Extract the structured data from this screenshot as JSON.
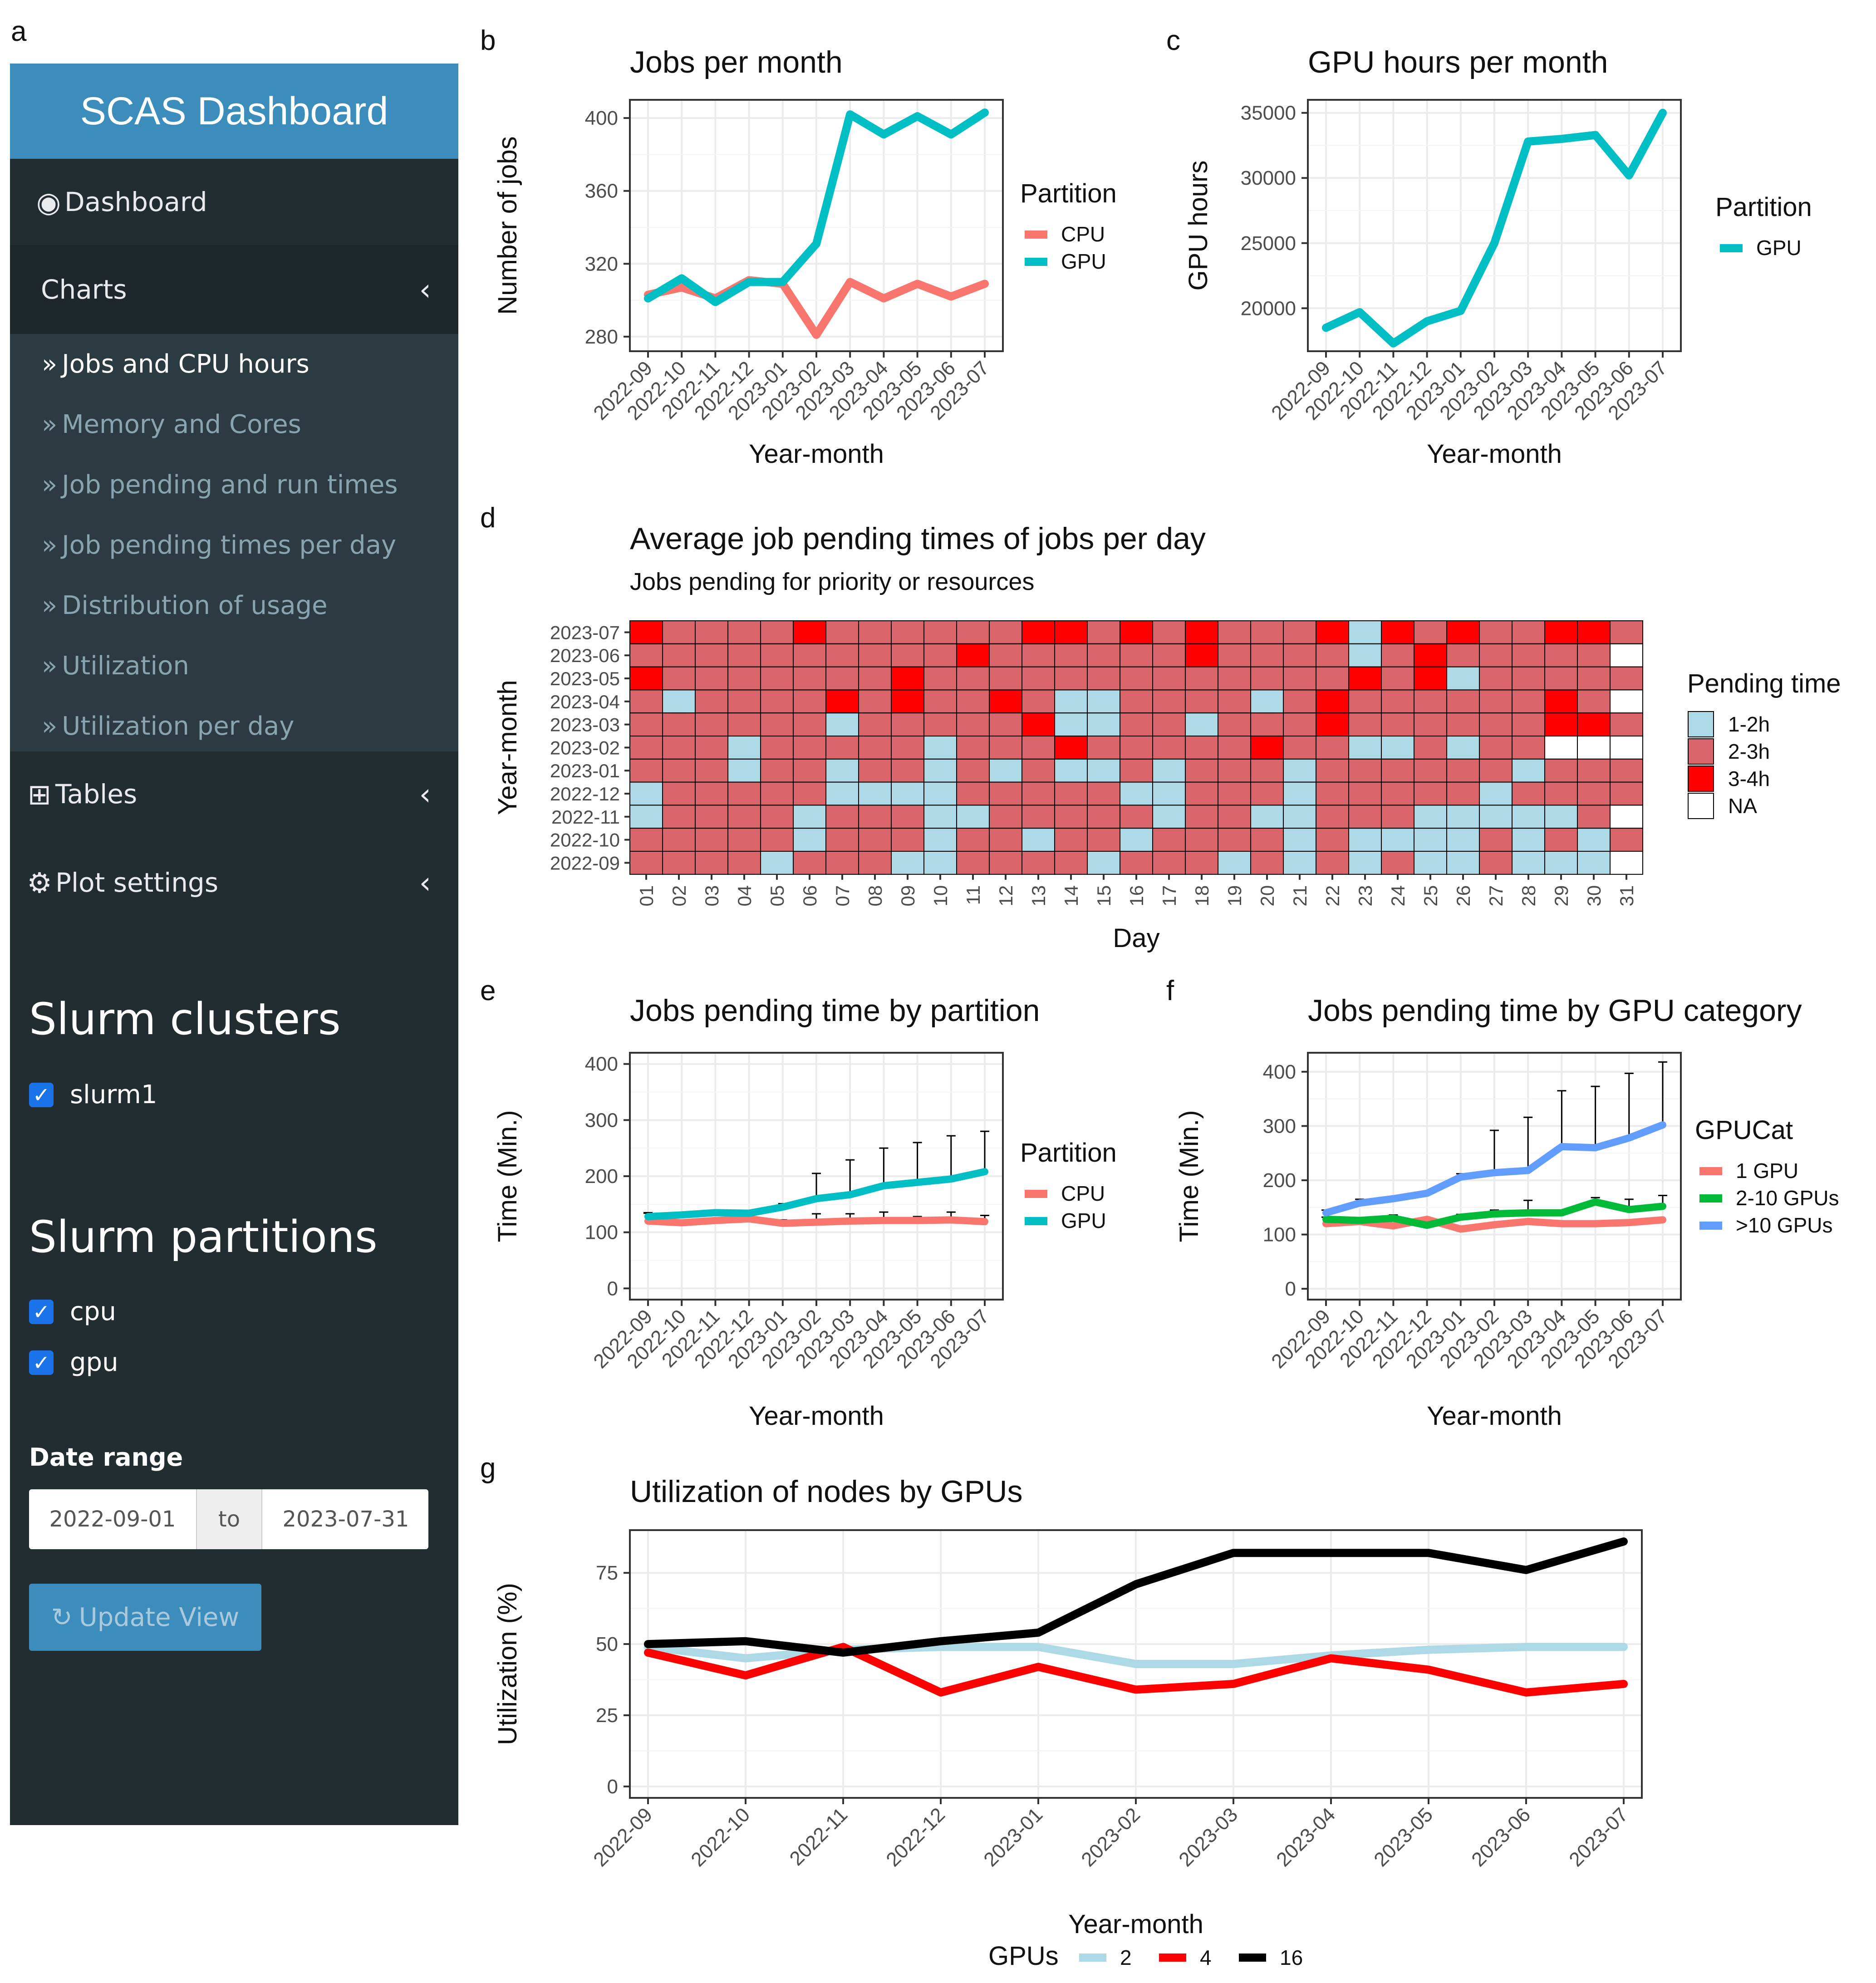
{
  "panel_letters": [
    "a",
    "b",
    "c",
    "d",
    "e",
    "f",
    "g"
  ],
  "sidebar": {
    "title": "SCAS Dashboard",
    "dashboard": {
      "label": "Dashboard",
      "icon": "dashboard-icon"
    },
    "charts": {
      "label": "Charts",
      "icon": "chevron-left-icon"
    },
    "chart_items": [
      {
        "label": "Jobs and CPU hours",
        "active": true
      },
      {
        "label": "Memory and Cores",
        "active": false
      },
      {
        "label": "Job pending and run times",
        "active": false
      },
      {
        "label": "Job pending times per day",
        "active": false
      },
      {
        "label": "Distribution of usage",
        "active": false
      },
      {
        "label": "Utilization",
        "active": false
      },
      {
        "label": "Utilization per day",
        "active": false
      }
    ],
    "tables": {
      "label": "Tables",
      "icon": "table-icon"
    },
    "plot_settings": {
      "label": "Plot settings",
      "icon": "gears-icon"
    },
    "clusters_title": "Slurm clusters",
    "clusters": [
      {
        "label": "slurm1",
        "checked": true
      }
    ],
    "partitions_title": "Slurm partitions",
    "partitions": [
      {
        "label": "cpu",
        "checked": true
      },
      {
        "label": "gpu",
        "checked": true
      }
    ],
    "date_range_label": "Date range",
    "date_from": "2022-09-01",
    "date_sep": "to",
    "date_to": "2023-07-31",
    "update_button": "Update View",
    "colors": {
      "header": "#3c8dbc",
      "body": "#222d32",
      "active": "#1e282c",
      "submenu": "#2c3b41"
    }
  },
  "chart_data": [
    {
      "id": "b",
      "type": "line",
      "title": "Jobs per month",
      "xlabel": "Year-month",
      "ylabel": "Number of jobs",
      "categories": [
        "2022-09",
        "2022-10",
        "2022-11",
        "2022-12",
        "2023-01",
        "2023-02",
        "2023-03",
        "2023-04",
        "2023-05",
        "2023-06",
        "2023-07"
      ],
      "ylim": [
        272,
        410
      ],
      "yticks": [
        280,
        320,
        360,
        400
      ],
      "legend_title": "Partition",
      "legend_position": "right",
      "series": [
        {
          "name": "CPU",
          "color": "#f8766d",
          "values": [
            303,
            307,
            301,
            311,
            309,
            281,
            310,
            301,
            309,
            302,
            309
          ]
        },
        {
          "name": "GPU",
          "color": "#00bfc4",
          "values": [
            301,
            312,
            299,
            310,
            310,
            331,
            402,
            391,
            401,
            391,
            403
          ]
        }
      ]
    },
    {
      "id": "c",
      "type": "line",
      "title": "GPU hours per month",
      "xlabel": "Year-month",
      "ylabel": "GPU hours",
      "categories": [
        "2022-09",
        "2022-10",
        "2022-11",
        "2022-12",
        "2023-01",
        "2023-02",
        "2023-03",
        "2023-04",
        "2023-05",
        "2023-06",
        "2023-07"
      ],
      "ylim": [
        16700,
        36000
      ],
      "yticks": [
        20000,
        25000,
        30000,
        35000
      ],
      "legend_title": "Partition",
      "legend_position": "right",
      "series": [
        {
          "name": "GPU",
          "color": "#00bfc4",
          "values": [
            18500,
            19700,
            17300,
            19000,
            19800,
            25000,
            32800,
            33000,
            33300,
            30200,
            35000
          ]
        }
      ]
    },
    {
      "id": "d",
      "type": "heatmap",
      "title": "Average job pending times of jobs per day",
      "subtitle": "Jobs pending for priority or resources",
      "xlabel": "Day",
      "ylabel": "Year-month",
      "x": [
        "01",
        "02",
        "03",
        "04",
        "05",
        "06",
        "07",
        "08",
        "09",
        "10",
        "11",
        "12",
        "13",
        "14",
        "15",
        "16",
        "17",
        "18",
        "19",
        "20",
        "21",
        "22",
        "23",
        "24",
        "25",
        "26",
        "27",
        "28",
        "29",
        "30",
        "31"
      ],
      "y": [
        "2023-07",
        "2023-06",
        "2023-05",
        "2023-04",
        "2023-03",
        "2023-02",
        "2023-01",
        "2022-12",
        "2022-11",
        "2022-10",
        "2022-09"
      ],
      "legend_title": "Pending time",
      "levels": [
        "1-2h",
        "2-3h",
        "3-4h",
        "NA"
      ],
      "level_colors": {
        "1-2h": "#add8e6",
        "2-3h": "#d9646a",
        "3-4h": "#ff0000",
        "NA": "#ffffff"
      },
      "rows": [
        [
          "3-4h",
          "2-3h",
          "2-3h",
          "2-3h",
          "2-3h",
          "3-4h",
          "2-3h",
          "2-3h",
          "2-3h",
          "2-3h",
          "2-3h",
          "2-3h",
          "3-4h",
          "3-4h",
          "2-3h",
          "3-4h",
          "2-3h",
          "3-4h",
          "2-3h",
          "2-3h",
          "2-3h",
          "3-4h",
          "1-2h",
          "3-4h",
          "2-3h",
          "3-4h",
          "2-3h",
          "2-3h",
          "3-4h",
          "3-4h",
          "2-3h"
        ],
        [
          "2-3h",
          "2-3h",
          "2-3h",
          "2-3h",
          "2-3h",
          "2-3h",
          "2-3h",
          "2-3h",
          "2-3h",
          "2-3h",
          "3-4h",
          "2-3h",
          "2-3h",
          "2-3h",
          "2-3h",
          "2-3h",
          "2-3h",
          "3-4h",
          "2-3h",
          "2-3h",
          "2-3h",
          "2-3h",
          "1-2h",
          "2-3h",
          "3-4h",
          "2-3h",
          "2-3h",
          "2-3h",
          "2-3h",
          "2-3h",
          "NA"
        ],
        [
          "3-4h",
          "2-3h",
          "2-3h",
          "2-3h",
          "2-3h",
          "2-3h",
          "2-3h",
          "2-3h",
          "3-4h",
          "2-3h",
          "2-3h",
          "2-3h",
          "2-3h",
          "2-3h",
          "2-3h",
          "2-3h",
          "2-3h",
          "2-3h",
          "2-3h",
          "2-3h",
          "2-3h",
          "2-3h",
          "3-4h",
          "2-3h",
          "3-4h",
          "1-2h",
          "2-3h",
          "2-3h",
          "2-3h",
          "2-3h",
          "2-3h"
        ],
        [
          "2-3h",
          "1-2h",
          "2-3h",
          "2-3h",
          "2-3h",
          "2-3h",
          "3-4h",
          "2-3h",
          "3-4h",
          "2-3h",
          "2-3h",
          "3-4h",
          "2-3h",
          "1-2h",
          "1-2h",
          "2-3h",
          "2-3h",
          "2-3h",
          "2-3h",
          "1-2h",
          "2-3h",
          "3-4h",
          "2-3h",
          "2-3h",
          "2-3h",
          "2-3h",
          "2-3h",
          "2-3h",
          "3-4h",
          "2-3h",
          "NA"
        ],
        [
          "2-3h",
          "2-3h",
          "2-3h",
          "2-3h",
          "2-3h",
          "2-3h",
          "1-2h",
          "2-3h",
          "2-3h",
          "2-3h",
          "2-3h",
          "2-3h",
          "3-4h",
          "1-2h",
          "1-2h",
          "2-3h",
          "2-3h",
          "1-2h",
          "2-3h",
          "2-3h",
          "2-3h",
          "3-4h",
          "2-3h",
          "2-3h",
          "2-3h",
          "2-3h",
          "2-3h",
          "2-3h",
          "3-4h",
          "3-4h",
          "2-3h"
        ],
        [
          "2-3h",
          "2-3h",
          "2-3h",
          "1-2h",
          "2-3h",
          "2-3h",
          "2-3h",
          "2-3h",
          "2-3h",
          "1-2h",
          "2-3h",
          "2-3h",
          "2-3h",
          "3-4h",
          "2-3h",
          "2-3h",
          "2-3h",
          "2-3h",
          "2-3h",
          "3-4h",
          "2-3h",
          "2-3h",
          "1-2h",
          "1-2h",
          "2-3h",
          "1-2h",
          "2-3h",
          "2-3h",
          "NA",
          "NA",
          "NA"
        ],
        [
          "2-3h",
          "2-3h",
          "2-3h",
          "1-2h",
          "2-3h",
          "2-3h",
          "1-2h",
          "2-3h",
          "2-3h",
          "1-2h",
          "2-3h",
          "1-2h",
          "2-3h",
          "1-2h",
          "1-2h",
          "2-3h",
          "1-2h",
          "2-3h",
          "2-3h",
          "2-3h",
          "1-2h",
          "2-3h",
          "2-3h",
          "2-3h",
          "2-3h",
          "2-3h",
          "2-3h",
          "1-2h",
          "2-3h",
          "2-3h",
          "2-3h"
        ],
        [
          "1-2h",
          "2-3h",
          "2-3h",
          "2-3h",
          "2-3h",
          "2-3h",
          "1-2h",
          "1-2h",
          "1-2h",
          "1-2h",
          "2-3h",
          "2-3h",
          "2-3h",
          "2-3h",
          "2-3h",
          "1-2h",
          "1-2h",
          "2-3h",
          "2-3h",
          "2-3h",
          "1-2h",
          "2-3h",
          "2-3h",
          "2-3h",
          "2-3h",
          "2-3h",
          "1-2h",
          "2-3h",
          "2-3h",
          "2-3h",
          "2-3h"
        ],
        [
          "1-2h",
          "2-3h",
          "2-3h",
          "2-3h",
          "2-3h",
          "1-2h",
          "2-3h",
          "2-3h",
          "2-3h",
          "1-2h",
          "1-2h",
          "2-3h",
          "2-3h",
          "2-3h",
          "2-3h",
          "2-3h",
          "1-2h",
          "2-3h",
          "2-3h",
          "1-2h",
          "1-2h",
          "2-3h",
          "2-3h",
          "2-3h",
          "1-2h",
          "1-2h",
          "1-2h",
          "1-2h",
          "1-2h",
          "2-3h",
          "NA"
        ],
        [
          "2-3h",
          "2-3h",
          "2-3h",
          "2-3h",
          "2-3h",
          "1-2h",
          "2-3h",
          "2-3h",
          "2-3h",
          "1-2h",
          "2-3h",
          "2-3h",
          "1-2h",
          "2-3h",
          "2-3h",
          "1-2h",
          "2-3h",
          "2-3h",
          "2-3h",
          "2-3h",
          "1-2h",
          "2-3h",
          "1-2h",
          "1-2h",
          "1-2h",
          "1-2h",
          "2-3h",
          "1-2h",
          "2-3h",
          "1-2h",
          "2-3h"
        ],
        [
          "2-3h",
          "2-3h",
          "2-3h",
          "2-3h",
          "1-2h",
          "2-3h",
          "2-3h",
          "2-3h",
          "1-2h",
          "1-2h",
          "2-3h",
          "2-3h",
          "2-3h",
          "2-3h",
          "1-2h",
          "2-3h",
          "2-3h",
          "2-3h",
          "1-2h",
          "2-3h",
          "1-2h",
          "2-3h",
          "1-2h",
          "2-3h",
          "1-2h",
          "1-2h",
          "2-3h",
          "1-2h",
          "1-2h",
          "1-2h",
          "NA"
        ]
      ]
    },
    {
      "id": "e",
      "type": "line",
      "title": "Jobs pending time by partition",
      "xlabel": "Year-month",
      "ylabel": "Time (Min.)",
      "categories": [
        "2022-09",
        "2022-10",
        "2022-11",
        "2022-12",
        "2023-01",
        "2023-02",
        "2023-03",
        "2023-04",
        "2023-05",
        "2023-06",
        "2023-07"
      ],
      "ylim": [
        -20,
        420
      ],
      "yticks": [
        0,
        100,
        200,
        300,
        400
      ],
      "legend_title": "Partition",
      "legend_position": "right",
      "series": [
        {
          "name": "CPU",
          "color": "#f8766d",
          "values": [
            120,
            117,
            121,
            124,
            116,
            118,
            120,
            121,
            121,
            122,
            119
          ],
          "upper": [
            135,
            122,
            124,
            127,
            122,
            133,
            133,
            136,
            128,
            136,
            130
          ]
        },
        {
          "name": "GPU",
          "color": "#00bfc4",
          "values": [
            128,
            131,
            135,
            134,
            145,
            160,
            167,
            183,
            189,
            195,
            208
          ],
          "upper": [
            134,
            135,
            138,
            137,
            151,
            205,
            229,
            250,
            260,
            272,
            280
          ]
        }
      ]
    },
    {
      "id": "f",
      "type": "line",
      "title": "Jobs pending time by GPU category",
      "xlabel": "Year-month",
      "ylabel": "Time (Min.)",
      "categories": [
        "2022-09",
        "2022-10",
        "2022-11",
        "2022-12",
        "2023-01",
        "2023-02",
        "2023-03",
        "2023-04",
        "2023-05",
        "2023-06",
        "2023-07"
      ],
      "ylim": [
        -20,
        435
      ],
      "yticks": [
        0,
        100,
        200,
        300,
        400
      ],
      "legend_title": "GPUCat",
      "legend_position": "right",
      "series": [
        {
          "name": "1 GPU",
          "color": "#f8766d",
          "values": [
            120,
            124,
            116,
            128,
            110,
            118,
            124,
            120,
            120,
            122,
            127
          ]
        },
        {
          "name": "2-10 GPUs",
          "color": "#00ba38",
          "values": [
            128,
            126,
            130,
            117,
            132,
            138,
            140,
            140,
            160,
            146,
            152
          ],
          "upper": [
            132,
            130,
            136,
            122,
            137,
            145,
            163,
            145,
            168,
            165,
            172
          ]
        },
        {
          "name": ">10 GPUs",
          "color": "#619cff",
          "values": [
            140,
            158,
            166,
            176,
            206,
            214,
            218,
            262,
            260,
            278,
            302
          ],
          "upper": [
            145,
            165,
            170,
            180,
            212,
            292,
            316,
            365,
            373,
            397,
            418
          ]
        }
      ]
    },
    {
      "id": "g",
      "type": "line",
      "title": "Utilization of nodes by GPUs",
      "xlabel": "Year-month",
      "ylabel": "Utilization (%)",
      "categories": [
        "2022-09",
        "2022-10",
        "2022-11",
        "2022-12",
        "2023-01",
        "2023-02",
        "2023-03",
        "2023-04",
        "2023-05",
        "2023-06",
        "2023-07"
      ],
      "ylim": [
        -4,
        90
      ],
      "yticks": [
        0,
        25,
        50,
        75
      ],
      "legend_title": "GPUs",
      "legend_position": "bottom",
      "series": [
        {
          "name": "2",
          "color": "#add8e6",
          "values": [
            49,
            45,
            48,
            49,
            49,
            43,
            43,
            46,
            48,
            49,
            49
          ]
        },
        {
          "name": "4",
          "color": "#ff0000",
          "values": [
            47,
            39,
            49,
            33,
            42,
            34,
            36,
            45,
            41,
            33,
            36
          ]
        },
        {
          "name": "16",
          "color": "#000000",
          "values": [
            50,
            51,
            47,
            51,
            54,
            71,
            82,
            82,
            82,
            76,
            86
          ]
        }
      ]
    }
  ]
}
